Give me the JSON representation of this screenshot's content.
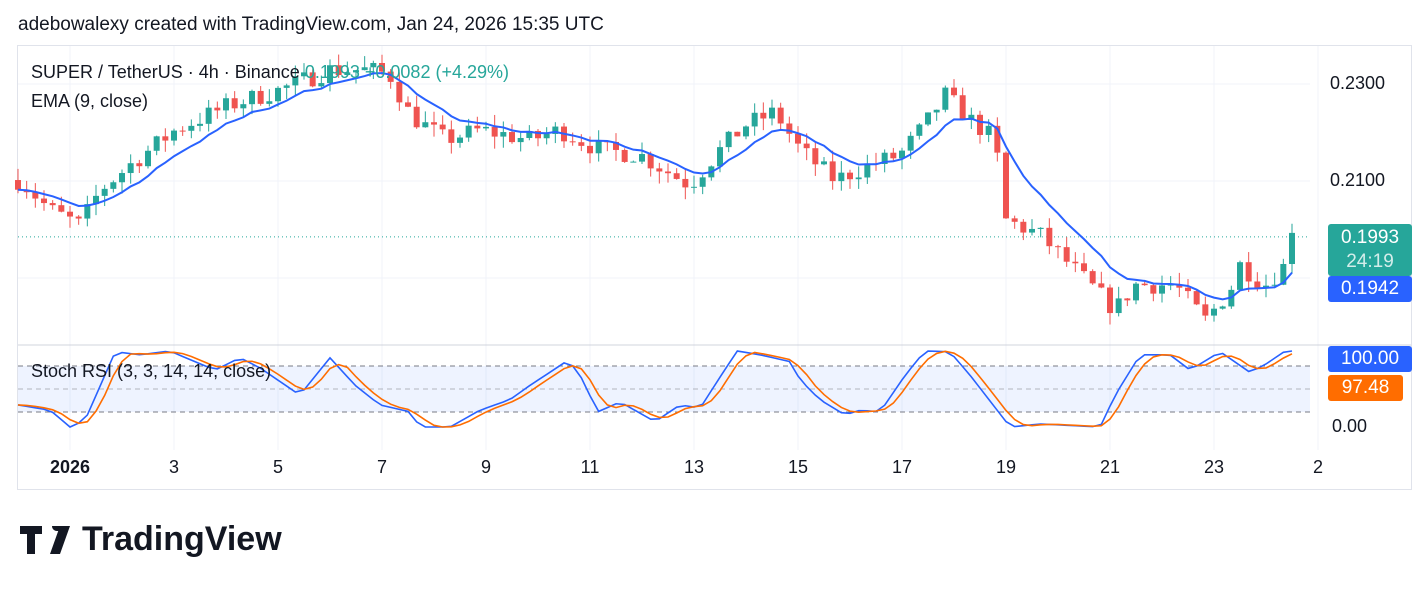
{
  "credit": "adebowalexy created with TradingView.com, Jan 24, 2026 15:35 UTC",
  "legend": {
    "symbol": "SUPER / TetherUS · 4h · Binance",
    "last": "0.1993",
    "change": "+0.0082 (+4.29%)",
    "ema": "EMA (9, close)",
    "stoch": "Stoch RSI (3, 3, 14, 14, close)"
  },
  "price_labels": {
    "last": "0.1993",
    "countdown": "24:19",
    "ema": "0.1942",
    "stoch_k": "100.00",
    "stoch_d": "97.48"
  },
  "logo": "TradingView",
  "colors": {
    "up": "#26a69a",
    "down": "#ef5350",
    "ema": "#2962ff",
    "k": "#2962ff",
    "d": "#ff6d00"
  },
  "chart_data": {
    "type": "candlestick",
    "title": "SUPER / TetherUS 4h",
    "y_ticks": [
      "0.2300",
      "0.2100"
    ],
    "ylim": [
      0.1735,
      0.2365
    ],
    "x_ticks": [
      "2026",
      "3",
      "5",
      "7",
      "9",
      "11",
      "13",
      "15",
      "17",
      "19",
      "21",
      "23",
      "2"
    ],
    "x_tick_days": [
      1,
      3,
      5,
      7,
      9,
      11,
      13,
      15,
      17,
      19,
      21,
      23,
      25
    ],
    "close_keypoints_day_price": [
      [
        0.04,
        0.2102
      ],
      [
        0.62,
        0.204
      ],
      [
        1.19,
        0.2009
      ],
      [
        1.58,
        0.2081
      ],
      [
        2.15,
        0.2133
      ],
      [
        3.02,
        0.2205
      ],
      [
        4.08,
        0.2257
      ],
      [
        5.04,
        0.2288
      ],
      [
        6.0,
        0.2329
      ],
      [
        6.77,
        0.2329
      ],
      [
        7.15,
        0.2319
      ],
      [
        7.54,
        0.2236
      ],
      [
        8.21,
        0.2185
      ],
      [
        8.88,
        0.2205
      ],
      [
        9.85,
        0.2185
      ],
      [
        10.42,
        0.2205
      ],
      [
        11.19,
        0.2164
      ],
      [
        11.96,
        0.2154
      ],
      [
        12.92,
        0.2092
      ],
      [
        13.5,
        0.2164
      ],
      [
        13.98,
        0.2215
      ],
      [
        14.56,
        0.2242
      ],
      [
        15.04,
        0.2164
      ],
      [
        15.71,
        0.2102
      ],
      [
        16.38,
        0.2133
      ],
      [
        16.96,
        0.2154
      ],
      [
        17.44,
        0.2215
      ],
      [
        17.83,
        0.2277
      ],
      [
        18.31,
        0.2226
      ],
      [
        18.79,
        0.2185
      ],
      [
        18.98,
        0.202
      ],
      [
        19.65,
        0.1989
      ],
      [
        20.33,
        0.1916
      ],
      [
        21.1,
        0.1834
      ],
      [
        21.48,
        0.1886
      ],
      [
        22.25,
        0.1886
      ],
      [
        22.83,
        0.1813
      ],
      [
        23.31,
        0.1875
      ],
      [
        23.5,
        0.1927
      ],
      [
        23.98,
        0.1886
      ],
      [
        24.37,
        0.1927
      ],
      [
        24.6,
        0.1993
      ]
    ],
    "ema_period": 9,
    "stoch": {
      "range": [
        0,
        100
      ],
      "bands": [
        20,
        50,
        80
      ],
      "k_keypoints_day_value": [
        [
          0,
          29
        ],
        [
          0.62,
          22
        ],
        [
          1,
          0
        ],
        [
          1.29,
          9
        ],
        [
          1.87,
          99
        ],
        [
          2.35,
          95
        ],
        [
          2.92,
          100
        ],
        [
          3.4,
          86
        ],
        [
          3.79,
          75
        ],
        [
          4.27,
          91
        ],
        [
          4.65,
          78
        ],
        [
          5.42,
          42
        ],
        [
          6,
          91
        ],
        [
          6.48,
          55
        ],
        [
          6.96,
          29
        ],
        [
          7.54,
          20
        ],
        [
          7.73,
          0
        ],
        [
          8.31,
          0
        ],
        [
          8.88,
          22
        ],
        [
          9.46,
          36
        ],
        [
          9.85,
          55
        ],
        [
          10.23,
          72
        ],
        [
          10.58,
          88
        ],
        [
          10.81,
          68
        ],
        [
          11.15,
          20
        ],
        [
          11.58,
          33
        ],
        [
          12.25,
          7
        ],
        [
          12.73,
          29
        ],
        [
          13.12,
          25
        ],
        [
          13.4,
          55
        ],
        [
          13.83,
          100
        ],
        [
          14.27,
          95
        ],
        [
          14.85,
          86
        ],
        [
          15.04,
          62
        ],
        [
          15.42,
          36
        ],
        [
          15.9,
          16
        ],
        [
          16.19,
          22
        ],
        [
          16.58,
          20
        ],
        [
          17.06,
          68
        ],
        [
          17.44,
          100
        ],
        [
          17.92,
          99
        ],
        [
          18.31,
          68
        ],
        [
          19.08,
          0
        ],
        [
          19.65,
          4
        ],
        [
          20.81,
          0
        ],
        [
          21.1,
          42
        ],
        [
          21.58,
          95
        ],
        [
          22.15,
          95
        ],
        [
          22.54,
          75
        ],
        [
          23.12,
          99
        ],
        [
          23.69,
          72
        ],
        [
          23.98,
          82
        ],
        [
          24.37,
          100
        ],
        [
          24.6,
          100
        ]
      ]
    }
  }
}
